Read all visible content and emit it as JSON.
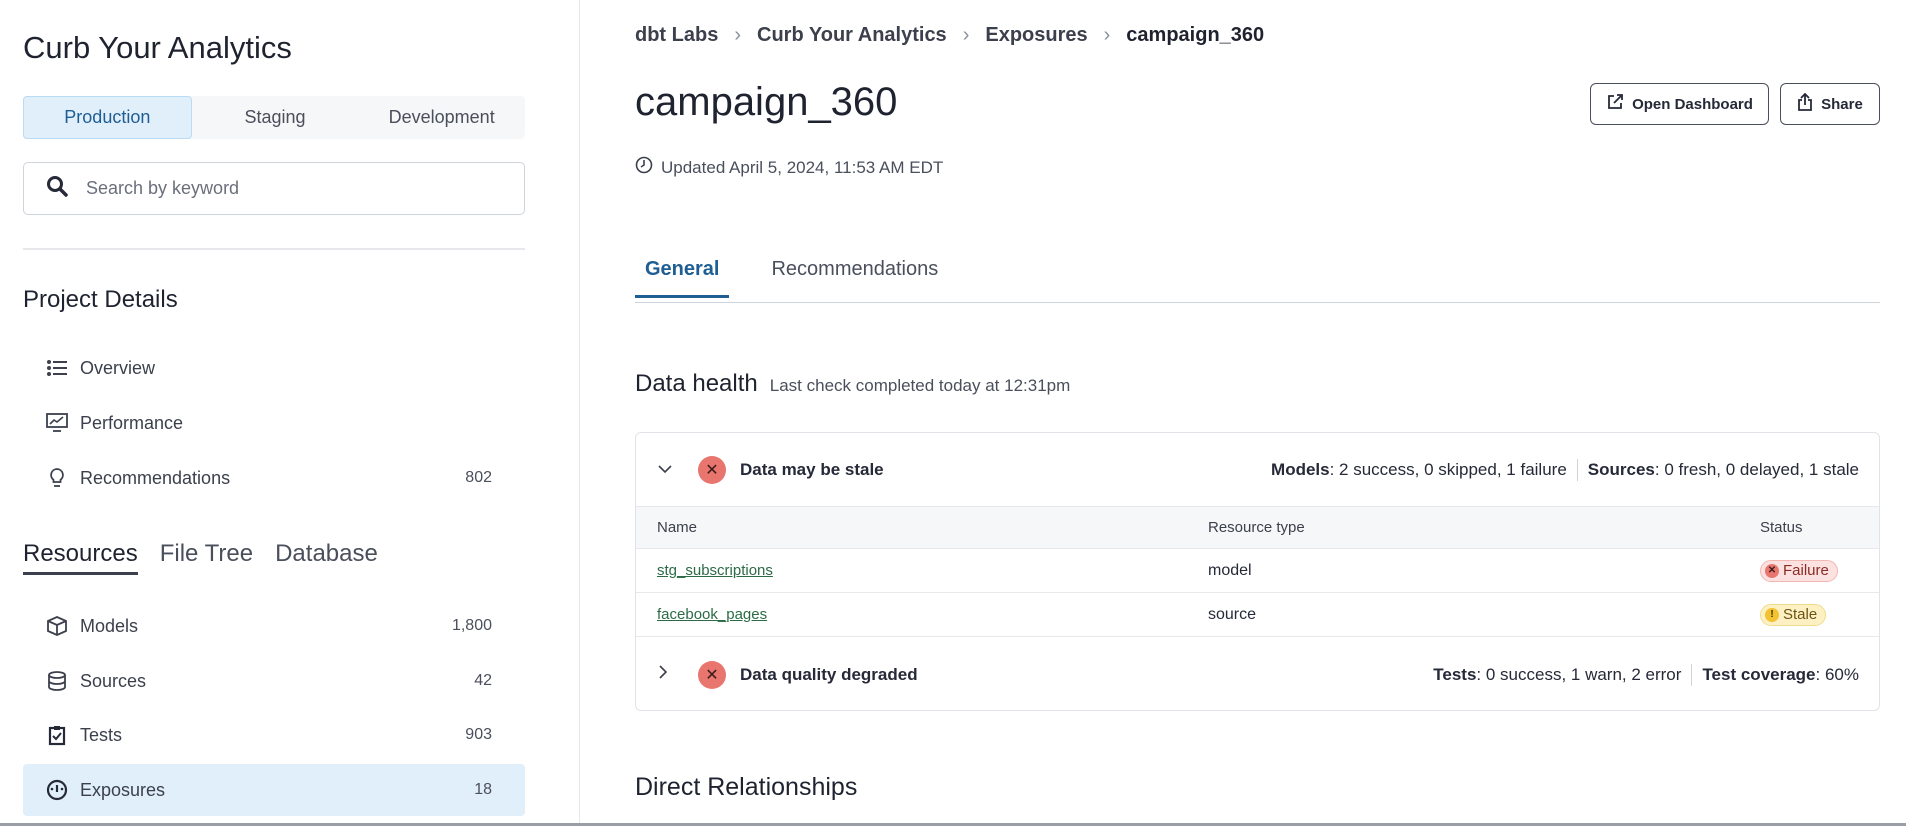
{
  "sidebar": {
    "title": "Curb Your Analytics",
    "environments": [
      "Production",
      "Staging",
      "Development"
    ],
    "active_environment": "Production",
    "search_placeholder": "Search by keyword",
    "project_details_title": "Project Details",
    "project_items": [
      {
        "label": "Overview",
        "icon": "list-icon"
      },
      {
        "label": "Performance",
        "icon": "monitor-chart-icon"
      },
      {
        "label": "Recommendations",
        "icon": "lightbulb-icon",
        "count": "802"
      }
    ],
    "resource_tabs": [
      "Resources",
      "File Tree",
      "Database"
    ],
    "active_resource_tab": "Resources",
    "resource_items": [
      {
        "label": "Models",
        "icon": "cube-icon",
        "count": "1,800"
      },
      {
        "label": "Sources",
        "icon": "database-icon",
        "count": "42"
      },
      {
        "label": "Tests",
        "icon": "clipboard-check-icon",
        "count": "903"
      },
      {
        "label": "Exposures",
        "icon": "gauge-icon",
        "count": "18",
        "selected": true
      }
    ]
  },
  "breadcrumb": [
    "dbt Labs",
    "Curb Your Analytics",
    "Exposures",
    "campaign_360"
  ],
  "page": {
    "title": "campaign_360",
    "updated": "Updated April 5, 2024, 11:53 AM EDT",
    "open_dashboard_label": "Open Dashboard",
    "share_label": "Share",
    "tabs": [
      "General",
      "Recommendations"
    ],
    "active_tab": "General"
  },
  "data_health": {
    "title": "Data health",
    "subtitle": "Last check completed today at 12:31pm",
    "stale": {
      "title": "Data may be stale",
      "models_label": "Models",
      "models_value": ": 2 success, 0 skipped, 1 failure",
      "sources_label": "Sources",
      "sources_value": ": 0 fresh, 0 delayed, 1 stale",
      "columns": [
        "Name",
        "Resource type",
        "Status"
      ],
      "rows": [
        {
          "name": "stg_subscriptions",
          "type": "model",
          "status": "Failure"
        },
        {
          "name": "facebook_pages",
          "type": "source",
          "status": "Stale"
        }
      ]
    },
    "quality": {
      "title": "Data quality degraded",
      "tests_label": "Tests",
      "tests_value": ": 0 success, 1 warn, 2 error",
      "coverage_label": "Test coverage",
      "coverage_value": ": 60%"
    }
  },
  "direct_relationships_title": "Direct Relationships",
  "colors": {
    "accent": "#1e5e93",
    "selected_bg": "#e1effa",
    "error": "#e8756e",
    "link": "#2c6b45"
  }
}
